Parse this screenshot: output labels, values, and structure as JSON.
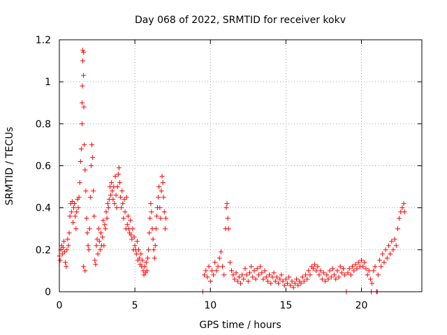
{
  "chart_data": {
    "type": "scatter",
    "title": "Day 068 of 2022, SRMTID for receiver kokv",
    "xlabel": "GPS time / hours",
    "ylabel": "SRMTID / TECUs",
    "xlim": [
      0,
      24
    ],
    "ylim": [
      0,
      1.2
    ],
    "xticks": [
      0,
      5,
      10,
      15,
      20
    ],
    "yticks": [
      0,
      0.2,
      0.4,
      0.6,
      0.8,
      1,
      1.2
    ],
    "xtick_labels": [
      "0",
      "5",
      "10",
      "15",
      "20"
    ],
    "ytick_labels": [
      "0",
      "0.2",
      "0.4",
      "0.6",
      "0.8",
      "1",
      "1.2"
    ],
    "grid": true,
    "marker": "plus",
    "color": "#ff0000",
    "series": [
      {
        "name": "SRMTID",
        "points": [
          [
            0.0,
            0.17
          ],
          [
            0.05,
            0.15
          ],
          [
            0.1,
            0.2
          ],
          [
            0.15,
            0.22
          ],
          [
            0.2,
            0.18
          ],
          [
            0.25,
            0.21
          ],
          [
            0.3,
            0.24
          ],
          [
            0.35,
            0.19
          ],
          [
            0.4,
            0.14
          ],
          [
            0.45,
            0.12
          ],
          [
            0.5,
            0.2
          ],
          [
            0.55,
            0.25
          ],
          [
            0.6,
            0.22
          ],
          [
            0.65,
            0.28
          ],
          [
            0.7,
            0.36
          ],
          [
            0.75,
            0.42
          ],
          [
            0.8,
            0.38
          ],
          [
            0.85,
            0.43
          ],
          [
            0.9,
            0.33
          ],
          [
            0.95,
            0.4
          ],
          [
            1.0,
            0.42
          ],
          [
            1.05,
            0.36
          ],
          [
            1.1,
            0.3
          ],
          [
            1.15,
            0.38
          ],
          [
            1.2,
            0.44
          ],
          [
            1.25,
            0.4
          ],
          [
            1.3,
            0.45
          ],
          [
            1.35,
            0.52
          ],
          [
            1.4,
            0.62
          ],
          [
            1.45,
            0.68
          ],
          [
            1.5,
            0.8
          ],
          [
            1.5,
            0.9
          ],
          [
            1.52,
            0.98
          ],
          [
            1.55,
            1.1
          ],
          [
            1.55,
            1.15
          ],
          [
            1.6,
            1.14
          ],
          [
            1.6,
            1.03
          ],
          [
            1.62,
            0.88
          ],
          [
            1.65,
            0.7
          ],
          [
            1.7,
            0.58
          ],
          [
            1.6,
            0.12
          ],
          [
            1.7,
            0.1
          ],
          [
            1.75,
            0.48
          ],
          [
            1.8,
            0.35
          ],
          [
            1.85,
            0.28
          ],
          [
            1.9,
            0.22
          ],
          [
            1.95,
            0.2
          ],
          [
            2.0,
            0.3
          ],
          [
            2.05,
            0.45
          ],
          [
            2.1,
            0.6
          ],
          [
            2.15,
            0.7
          ],
          [
            2.2,
            0.64
          ],
          [
            2.25,
            0.48
          ],
          [
            2.3,
            0.36
          ],
          [
            2.35,
            0.15
          ],
          [
            2.4,
            0.13
          ],
          [
            2.45,
            0.22
          ],
          [
            2.5,
            0.25
          ],
          [
            2.55,
            0.18
          ],
          [
            2.6,
            0.3
          ],
          [
            2.65,
            0.24
          ],
          [
            2.7,
            0.2
          ],
          [
            2.75,
            0.28
          ],
          [
            2.8,
            0.22
          ],
          [
            2.85,
            0.26
          ],
          [
            2.9,
            0.34
          ],
          [
            2.95,
            0.22
          ],
          [
            3.0,
            0.32
          ],
          [
            3.05,
            0.3
          ],
          [
            3.1,
            0.38
          ],
          [
            3.15,
            0.35
          ],
          [
            3.2,
            0.42
          ],
          [
            3.25,
            0.4
          ],
          [
            3.3,
            0.44
          ],
          [
            3.35,
            0.5
          ],
          [
            3.4,
            0.46
          ],
          [
            3.45,
            0.52
          ],
          [
            3.5,
            0.48
          ],
          [
            3.55,
            0.44
          ],
          [
            3.6,
            0.5
          ],
          [
            3.65,
            0.42
          ],
          [
            3.7,
            0.55
          ],
          [
            3.75,
            0.46
          ],
          [
            3.8,
            0.4
          ],
          [
            3.85,
            0.5
          ],
          [
            3.9,
            0.56
          ],
          [
            3.95,
            0.59
          ],
          [
            4.0,
            0.52
          ],
          [
            4.05,
            0.45
          ],
          [
            4.1,
            0.4
          ],
          [
            4.15,
            0.48
          ],
          [
            4.2,
            0.42
          ],
          [
            4.25,
            0.35
          ],
          [
            4.3,
            0.44
          ],
          [
            4.35,
            0.38
          ],
          [
            4.4,
            0.3
          ],
          [
            4.45,
            0.45
          ],
          [
            4.5,
            0.32
          ],
          [
            4.55,
            0.36
          ],
          [
            4.6,
            0.3
          ],
          [
            4.65,
            0.28
          ],
          [
            4.7,
            0.34
          ],
          [
            4.75,
            0.27
          ],
          [
            4.8,
            0.25
          ],
          [
            4.85,
            0.3
          ],
          [
            4.9,
            0.2
          ],
          [
            4.95,
            0.26
          ],
          [
            5.0,
            0.22
          ],
          [
            5.05,
            0.2
          ],
          [
            5.1,
            0.18
          ],
          [
            5.15,
            0.24
          ],
          [
            5.2,
            0.15
          ],
          [
            5.25,
            0.2
          ],
          [
            5.3,
            0.16
          ],
          [
            5.35,
            0.13
          ],
          [
            5.4,
            0.18
          ],
          [
            5.45,
            0.12
          ],
          [
            5.5,
            0.15
          ],
          [
            5.55,
            0.1
          ],
          [
            5.6,
            0.08
          ],
          [
            5.65,
            0.12
          ],
          [
            5.7,
            0.09
          ],
          [
            5.75,
            0.14
          ],
          [
            5.8,
            0.1
          ],
          [
            5.85,
            0.16
          ],
          [
            5.9,
            0.2
          ],
          [
            5.95,
            0.28
          ],
          [
            6.0,
            0.35
          ],
          [
            6.05,
            0.42
          ],
          [
            6.1,
            0.38
          ],
          [
            6.15,
            0.3
          ],
          [
            6.2,
            0.25
          ],
          [
            6.25,
            0.2
          ],
          [
            6.3,
            0.16
          ],
          [
            6.35,
            0.22
          ],
          [
            6.4,
            0.3
          ],
          [
            6.45,
            0.36
          ],
          [
            6.5,
            0.4
          ],
          [
            6.55,
            0.45
          ],
          [
            6.6,
            0.5
          ],
          [
            6.65,
            0.4
          ],
          [
            6.7,
            0.35
          ],
          [
            6.75,
            0.48
          ],
          [
            6.8,
            0.55
          ],
          [
            6.85,
            0.52
          ],
          [
            6.9,
            0.45
          ],
          [
            6.95,
            0.38
          ],
          [
            7.0,
            0.3
          ],
          [
            7.05,
            0.35
          ],
          [
            9.5,
            0.0
          ],
          [
            9.6,
            0.08
          ],
          [
            9.7,
            0.1
          ],
          [
            9.8,
            0.07
          ],
          [
            9.9,
            0.12
          ],
          [
            10.0,
            0.05
          ],
          [
            10.1,
            0.1
          ],
          [
            10.2,
            0.08
          ],
          [
            10.3,
            0.14
          ],
          [
            10.4,
            0.1
          ],
          [
            10.5,
            0.12
          ],
          [
            10.6,
            0.16
          ],
          [
            10.7,
            0.19
          ],
          [
            10.8,
            0.12
          ],
          [
            10.9,
            0.08
          ],
          [
            11.0,
            0.3
          ],
          [
            11.05,
            0.4
          ],
          [
            11.1,
            0.42
          ],
          [
            11.15,
            0.35
          ],
          [
            11.2,
            0.3
          ],
          [
            11.3,
            0.14
          ],
          [
            11.4,
            0.1
          ],
          [
            11.5,
            0.08
          ],
          [
            11.6,
            0.06
          ],
          [
            11.7,
            0.09
          ],
          [
            11.8,
            0.05
          ],
          [
            11.9,
            0.07
          ],
          [
            12.0,
            0.04
          ],
          [
            12.1,
            0.08
          ],
          [
            12.2,
            0.06
          ],
          [
            12.3,
            0.11
          ],
          [
            12.4,
            0.08
          ],
          [
            12.5,
            0.05
          ],
          [
            12.6,
            0.09
          ],
          [
            12.7,
            0.12
          ],
          [
            12.8,
            0.07
          ],
          [
            12.9,
            0.1
          ],
          [
            13.0,
            0.06
          ],
          [
            13.1,
            0.11
          ],
          [
            13.2,
            0.08
          ],
          [
            13.3,
            0.12
          ],
          [
            13.4,
            0.09
          ],
          [
            13.5,
            0.06
          ],
          [
            13.6,
            0.1
          ],
          [
            13.7,
            0.07
          ],
          [
            13.8,
            0.05
          ],
          [
            13.9,
            0.08
          ],
          [
            14.0,
            0.04
          ],
          [
            14.1,
            0.07
          ],
          [
            14.2,
            0.09
          ],
          [
            14.3,
            0.05
          ],
          [
            14.4,
            0.07
          ],
          [
            14.5,
            0.04
          ],
          [
            14.6,
            0.06
          ],
          [
            14.7,
            0.08
          ],
          [
            14.8,
            0.05
          ],
          [
            14.9,
            0.03
          ],
          [
            15.0,
            0.06
          ],
          [
            15.1,
            0.04
          ],
          [
            15.2,
            0.07
          ],
          [
            15.3,
            0.03
          ],
          [
            15.4,
            0.05
          ],
          [
            15.5,
            0.02
          ],
          [
            15.6,
            0.04
          ],
          [
            15.7,
            0.06
          ],
          [
            15.8,
            0.03
          ],
          [
            15.9,
            0.05
          ],
          [
            16.0,
            0.04
          ],
          [
            16.1,
            0.07
          ],
          [
            16.2,
            0.05
          ],
          [
            16.3,
            0.08
          ],
          [
            16.4,
            0.06
          ],
          [
            16.5,
            0.1
          ],
          [
            16.6,
            0.08
          ],
          [
            16.7,
            0.12
          ],
          [
            16.8,
            0.11
          ],
          [
            16.9,
            0.13
          ],
          [
            17.0,
            0.1
          ],
          [
            17.1,
            0.12
          ],
          [
            17.2,
            0.08
          ],
          [
            17.3,
            0.1
          ],
          [
            17.4,
            0.06
          ],
          [
            17.5,
            0.09
          ],
          [
            17.6,
            0.05
          ],
          [
            17.7,
            0.08
          ],
          [
            17.8,
            0.06
          ],
          [
            17.9,
            0.1
          ],
          [
            18.0,
            0.07
          ],
          [
            18.1,
            0.11
          ],
          [
            18.2,
            0.08
          ],
          [
            18.3,
            0.06
          ],
          [
            18.4,
            0.1
          ],
          [
            18.5,
            0.07
          ],
          [
            18.6,
            0.12
          ],
          [
            18.7,
            0.09
          ],
          [
            18.8,
            0.11
          ],
          [
            18.9,
            0.08
          ],
          [
            19.0,
            0.0
          ],
          [
            19.1,
            0.09
          ],
          [
            19.2,
            0.11
          ],
          [
            19.3,
            0.08
          ],
          [
            19.4,
            0.12
          ],
          [
            19.5,
            0.1
          ],
          [
            19.6,
            0.13
          ],
          [
            19.7,
            0.11
          ],
          [
            19.8,
            0.14
          ],
          [
            19.9,
            0.12
          ],
          [
            20.0,
            0.15
          ],
          [
            20.1,
            0.12
          ],
          [
            20.2,
            0.14
          ],
          [
            20.3,
            0.11
          ],
          [
            20.4,
            0.08
          ],
          [
            20.5,
            0.1
          ],
          [
            20.6,
            0.06
          ],
          [
            20.65,
            0.0
          ],
          [
            20.7,
            0.04
          ],
          [
            20.8,
            0.1
          ],
          [
            20.9,
            0.12
          ],
          [
            21.0,
            0.0
          ],
          [
            21.05,
            0.0
          ],
          [
            21.1,
            0.08
          ],
          [
            21.2,
            0.15
          ],
          [
            21.3,
            0.12
          ],
          [
            21.4,
            0.18
          ],
          [
            21.5,
            0.14
          ],
          [
            21.6,
            0.2
          ],
          [
            21.7,
            0.16
          ],
          [
            21.8,
            0.22
          ],
          [
            21.9,
            0.18
          ],
          [
            22.0,
            0.24
          ],
          [
            22.1,
            0.2
          ],
          [
            22.2,
            0.25
          ],
          [
            22.3,
            0.22
          ],
          [
            22.4,
            0.3
          ],
          [
            22.5,
            0.35
          ],
          [
            22.6,
            0.38
          ],
          [
            22.7,
            0.4
          ],
          [
            22.8,
            0.42
          ],
          [
            22.85,
            0.38
          ]
        ]
      }
    ]
  }
}
